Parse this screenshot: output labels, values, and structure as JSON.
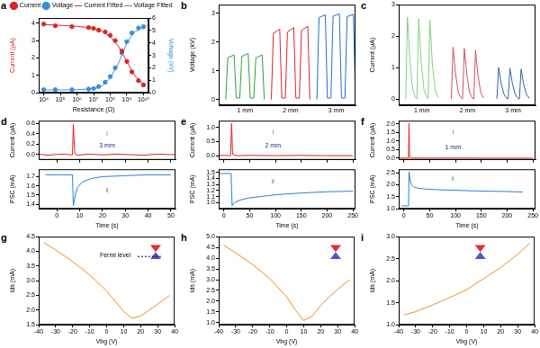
{
  "chart_data": [
    {
      "title": "a",
      "type": "line",
      "x_label": "Resistance (Ω)",
      "y_label": "Current (μA)",
      "y2_label": "Voltage (kV)",
      "log": "x",
      "grid": false,
      "legend": "top",
      "xlim": [
        5000,
        20000000000
      ],
      "xticks": [
        {
          "value": 10000,
          "label": "10⁴"
        },
        {
          "value": 100000,
          "label": "10⁵"
        },
        {
          "value": 1000000,
          "label": "10⁶"
        },
        {
          "value": 10000000,
          "label": "10⁷"
        },
        {
          "value": 100000000,
          "label": "10⁸"
        },
        {
          "value": 1000000000,
          "label": "10⁹"
        },
        {
          "value": 10000000000,
          "label": "10¹⁰"
        }
      ],
      "ylim": [
        0,
        4.3
      ],
      "yticks": [
        0,
        1,
        2,
        3,
        4
      ],
      "y2lim": [
        0,
        6
      ],
      "y2ticks": [
        0,
        1,
        2,
        3,
        4,
        5,
        6
      ],
      "series": [
        {
          "name": "Current",
          "type": "scatter",
          "color": "#d62728",
          "x": [
            10000,
            50000,
            500000,
            5000000,
            10000000,
            20000000,
            50000000,
            100000000,
            200000000,
            500000000,
            1000000000,
            2000000000,
            5000000000,
            10000000000
          ],
          "values": [
            3.95,
            3.85,
            3.8,
            3.75,
            3.7,
            3.6,
            3.5,
            3.3,
            3.0,
            2.4,
            1.8,
            1.2,
            0.7,
            0.45
          ]
        },
        {
          "name": "Voltage",
          "type": "scatter",
          "color": "#3a8fd8",
          "axis": "y2",
          "x": [
            10000,
            50000,
            500000,
            5000000,
            10000000,
            20000000,
            50000000,
            100000000,
            200000000,
            500000000,
            1000000000,
            2000000000,
            5000000000,
            10000000000
          ],
          "values": [
            0.25,
            0.25,
            0.25,
            0.3,
            0.35,
            0.5,
            0.85,
            1.3,
            2.0,
            3.2,
            4.1,
            4.8,
            5.2,
            5.3
          ]
        },
        {
          "name": "Current Fitted",
          "type": "line",
          "color": "#d62728",
          "x": [
            10000,
            100000,
            1000000,
            10000000,
            30000000,
            100000000,
            300000000,
            1000000000,
            3000000000,
            10000000000
          ],
          "values": [
            3.92,
            3.88,
            3.82,
            3.72,
            3.55,
            3.25,
            2.7,
            1.8,
            1.0,
            0.45
          ]
        },
        {
          "name": "Voltage Fitted",
          "type": "line",
          "color": "#3a8fd8",
          "axis": "y2",
          "x": [
            10000,
            100000,
            1000000,
            10000000,
            30000000,
            100000000,
            300000000,
            1000000000,
            3000000000,
            10000000000
          ],
          "values": [
            0.22,
            0.23,
            0.25,
            0.33,
            0.5,
            1.2,
            2.3,
            4.0,
            4.9,
            5.25
          ]
        }
      ]
    },
    {
      "title": "b",
      "type": "line",
      "y_label": "Voltage (kV)",
      "grid": false,
      "tick_labels": "y",
      "xlim": [
        -1,
        18.5
      ],
      "ylim": [
        -0.2,
        3.3
      ],
      "yticks": [
        0,
        1,
        2,
        3
      ],
      "series": [
        {
          "name": "1 mm",
          "color": "#2e9e3a",
          "x": [
            0,
            0.3,
            1.2,
            1.5,
            2,
            2.3,
            3.2,
            3.5,
            4,
            4.3,
            5.2,
            5.5
          ],
          "values": [
            0,
            1.45,
            1.55,
            0.05,
            0.05,
            1.5,
            1.6,
            0.05,
            0.05,
            1.45,
            1.55,
            0
          ]
        },
        {
          "name": "2 mm",
          "color": "#d62728",
          "x": [
            6.5,
            6.8,
            7.7,
            8,
            8.5,
            8.8,
            9.7,
            10,
            10.5,
            10.8,
            11.7,
            12
          ],
          "values": [
            0,
            2.3,
            2.45,
            0.05,
            0.05,
            2.35,
            2.5,
            0.05,
            0.05,
            2.4,
            2.55,
            0
          ]
        },
        {
          "name": "3 mm",
          "color": "#1f6fc0",
          "x": [
            13,
            13.3,
            14.2,
            14.5,
            15,
            15.3,
            16.2,
            16.5,
            17,
            17.3,
            18.2,
            18.5
          ],
          "values": [
            0,
            2.85,
            2.95,
            0.05,
            0.05,
            2.9,
            2.98,
            0.05,
            0.05,
            2.88,
            2.97,
            0
          ]
        }
      ]
    },
    {
      "title": "c",
      "type": "line",
      "y_label": "Current (μA)",
      "grid": false,
      "tick_labels": "y",
      "xlim": [
        -1,
        18.5
      ],
      "ylim": [
        -0.2,
        3
      ],
      "yticks": [
        0,
        1,
        2,
        3
      ],
      "series": [
        {
          "name": "1 mm",
          "color": "#7fd17f",
          "x": [
            0,
            0.25,
            0.6,
            1.0,
            1.4,
            1.6,
            1.85,
            2.2,
            2.6,
            3.0,
            3.2,
            3.45,
            3.8,
            4.2,
            4.6
          ],
          "values": [
            0,
            2.6,
            1.2,
            0.3,
            0.05,
            0,
            2.55,
            1.2,
            0.3,
            0.05,
            0,
            2.5,
            1.1,
            0.3,
            0.05
          ]
        },
        {
          "name": "2 mm",
          "color": "#d05060",
          "x": [
            6.5,
            6.75,
            7.1,
            7.5,
            7.9,
            8.1,
            8.35,
            8.7,
            9.1,
            9.5,
            9.7,
            9.95,
            10.3,
            10.7,
            11.1
          ],
          "values": [
            0,
            1.65,
            0.8,
            0.2,
            0.03,
            0,
            1.6,
            0.8,
            0.2,
            0.03,
            0,
            1.55,
            0.75,
            0.2,
            0.03
          ]
        },
        {
          "name": "3 mm",
          "color": "#3060a8",
          "x": [
            13,
            13.25,
            13.6,
            14.0,
            14.4,
            14.6,
            14.85,
            15.2,
            15.6,
            16.0,
            16.2,
            16.45,
            16.8,
            17.2,
            17.6
          ],
          "values": [
            0,
            1.0,
            0.5,
            0.15,
            0.02,
            0,
            0.98,
            0.5,
            0.15,
            0.02,
            0,
            0.95,
            0.48,
            0.15,
            0.02
          ]
        }
      ]
    },
    {
      "title": "d",
      "type": "line",
      "y_label": "Current (μA)",
      "grid": false,
      "tick_labels": "y",
      "xlim": [
        -8,
        52
      ],
      "xticks": [
        0,
        10,
        20,
        30,
        40,
        50
      ],
      "ylim": [
        -0.1,
        0.65
      ],
      "yticks": [
        {
          "value": 0,
          "label": "0.0"
        },
        0.2,
        0.4,
        0.6
      ],
      "color": "#e02020",
      "x": [
        -8,
        -4,
        0,
        4,
        6,
        6.8,
        7.2,
        7.8,
        9,
        14,
        20,
        26,
        32,
        38,
        44,
        50,
        52
      ],
      "values": [
        0.01,
        -0.01,
        0.005,
        0.01,
        -0.005,
        0,
        0.58,
        0.02,
        -0.01,
        0.01,
        -0.005,
        0.01,
        0,
        -0.01,
        0.01,
        0,
        0.005
      ],
      "annotations": [
        {
          "text": "i",
          "x": 22,
          "y": 0.4,
          "color": "#2e9e3a"
        },
        {
          "text": "3 mm",
          "x": 22,
          "y": 0.17,
          "color": "#1a237e"
        }
      ]
    },
    {
      "type": "line",
      "x_label": "Time (s)",
      "y_label": "PSC (mA)",
      "grid": false,
      "xlim": [
        -8,
        52
      ],
      "xticks": [
        0,
        10,
        20,
        30,
        40,
        50
      ],
      "ylim": [
        1.35,
        1.78
      ],
      "yticks": [
        1.4,
        1.5,
        1.6,
        1.7
      ],
      "color": "#2a7fd4",
      "x": [
        -5,
        0,
        5,
        6.8,
        7.2,
        8,
        9,
        11,
        15,
        20,
        30,
        40,
        50
      ],
      "values": [
        1.72,
        1.72,
        1.72,
        1.72,
        1.38,
        1.5,
        1.58,
        1.64,
        1.68,
        1.7,
        1.71,
        1.72,
        1.72
      ],
      "annotations": [
        {
          "text": "ii",
          "x": 22,
          "y": 1.55,
          "color": "#2e9e3a"
        }
      ]
    },
    {
      "title": "e",
      "type": "line",
      "y_label": "Current (μA)",
      "grid": false,
      "tick_labels": "y",
      "xlim": [
        -10,
        255
      ],
      "xticks": [
        0,
        50,
        100,
        150,
        200,
        250
      ],
      "ylim": [
        -0.15,
        1.25
      ],
      "yticks": [
        {
          "value": 0,
          "label": "0.0"
        },
        0.5,
        {
          "value": 1,
          "label": "1.0"
        }
      ],
      "color": "#e02020",
      "x": [
        -10,
        0,
        10,
        13,
        15,
        17,
        25,
        50,
        100,
        150,
        200,
        250
      ],
      "values": [
        0,
        0.01,
        0,
        0,
        1.15,
        0.05,
        0,
        0.01,
        0,
        0.01,
        0,
        0
      ],
      "annotations": [
        {
          "text": "i",
          "x": 95,
          "y": 0.85,
          "color": "#2e9e3a"
        },
        {
          "text": "2 mm",
          "x": 95,
          "y": 0.35,
          "color": "#1a237e"
        }
      ]
    },
    {
      "type": "line",
      "x_label": "Time (s)",
      "y_label": "PSC (mA)",
      "grid": false,
      "xlim": [
        -10,
        255
      ],
      "xticks": [
        0,
        50,
        100,
        150,
        200,
        250
      ],
      "ylim": [
        0.9,
        1.55
      ],
      "yticks": [
        {
          "value": 1,
          "label": "1.0"
        },
        1.1,
        1.2,
        1.3,
        1.4,
        1.5
      ],
      "color": "#2a7fd4",
      "x": [
        -10,
        0,
        10,
        14,
        16,
        20,
        30,
        50,
        100,
        150,
        200,
        250
      ],
      "values": [
        1.48,
        1.48,
        1.48,
        1.48,
        0.95,
        1.0,
        1.04,
        1.08,
        1.13,
        1.16,
        1.18,
        1.19
      ],
      "annotations": [
        {
          "text": "ii",
          "x": 95,
          "y": 1.35,
          "color": "#2e9e3a"
        }
      ]
    },
    {
      "title": "f",
      "type": "line",
      "y_label": "Current (μA)",
      "grid": false,
      "tick_labels": "y",
      "xlim": [
        -10,
        255
      ],
      "xticks": [
        0,
        50,
        100,
        150,
        200,
        250
      ],
      "ylim": [
        -0.1,
        2.2
      ],
      "yticks": [
        {
          "value": 0,
          "label": "0.0"
        },
        0.5,
        {
          "value": 1,
          "label": "1.0"
        },
        1.5,
        {
          "value": 2,
          "label": "2.0"
        }
      ],
      "color": "#e02020",
      "x": [
        -10,
        0,
        7,
        9,
        10,
        11,
        14,
        25,
        50,
        100,
        150,
        200,
        250
      ],
      "values": [
        0,
        0.01,
        0,
        0,
        2.05,
        0.05,
        0,
        0.01,
        0,
        0.01,
        0,
        0,
        0
      ],
      "annotations": [
        {
          "text": "i",
          "x": 95,
          "y": 1.5,
          "color": "#2e9e3a"
        },
        {
          "text": "1 mm",
          "x": 95,
          "y": 0.6,
          "color": "#1a237e"
        }
      ]
    },
    {
      "type": "line",
      "x_label": "Time (s)",
      "y_label": "PSC (mA)",
      "grid": false,
      "xlim": [
        -10,
        255
      ],
      "xticks": [
        0,
        50,
        100,
        150,
        200,
        250
      ],
      "ylim": [
        1.0,
        2.65
      ],
      "yticks": [
        {
          "value": 1,
          "label": "1.0"
        },
        1.5,
        {
          "value": 2,
          "label": "2.0"
        },
        2.5
      ],
      "color": "#2a7fd4",
      "x": [
        -5,
        0,
        5,
        9,
        10,
        12,
        15,
        20,
        30,
        40,
        60,
        100,
        150,
        200,
        230
      ],
      "values": [
        1.12,
        1.12,
        1.12,
        1.12,
        2.55,
        2.2,
        2.0,
        1.9,
        1.85,
        1.83,
        1.8,
        1.77,
        1.74,
        1.72,
        1.7
      ],
      "annotations": [
        {
          "text": "ii",
          "x": 95,
          "y": 2.25,
          "color": "#2e9e3a"
        }
      ]
    },
    {
      "title": "g",
      "type": "line",
      "x_label": "Vbg (V)",
      "y_label": "Ids (mA)",
      "grid": false,
      "xlim": [
        -40,
        40
      ],
      "xticks": [
        -40,
        -30,
        -20,
        -10,
        0,
        10,
        20,
        30,
        40
      ],
      "ylim": [
        1.5,
        4.5
      ],
      "yticks": [
        1.5,
        {
          "value": 2,
          "label": "2.0"
        },
        2.5,
        {
          "value": 3,
          "label": "3.0"
        },
        3.5,
        {
          "value": 4,
          "label": "4.0"
        },
        4.5
      ],
      "color": "#f08a1e",
      "x": [
        -37,
        -30,
        -20,
        -10,
        0,
        5,
        10,
        15,
        20,
        25,
        30,
        37
      ],
      "values": [
        4.3,
        4.05,
        3.65,
        3.2,
        2.65,
        2.3,
        1.95,
        1.72,
        1.8,
        2.0,
        2.2,
        2.5
      ],
      "annotations": [
        {
          "text": "Fermi level",
          "x": 5,
          "y": 3.85,
          "color": "#000000"
        }
      ]
    },
    {
      "title": "h",
      "type": "line",
      "x_label": "Vbg (V)",
      "y_label": "Ids (mA)",
      "grid": false,
      "xlim": [
        -40,
        40
      ],
      "xticks": [
        -40,
        -30,
        -20,
        -10,
        0,
        10,
        20,
        30,
        40
      ],
      "ylim": [
        0.9,
        5.0
      ],
      "yticks": [
        {
          "value": 1,
          "label": "1.0"
        },
        1.5,
        {
          "value": 2,
          "label": "2.0"
        },
        2.5,
        {
          "value": 3,
          "label": "3.0"
        },
        3.5,
        {
          "value": 4,
          "label": "4.0"
        },
        4.5,
        {
          "value": 5,
          "label": "5.0"
        }
      ],
      "color": "#f08a1e",
      "x": [
        -37,
        -30,
        -20,
        -10,
        0,
        5,
        10,
        15,
        20,
        25,
        30,
        37
      ],
      "values": [
        4.6,
        4.25,
        3.7,
        3.05,
        2.2,
        1.6,
        1.1,
        1.3,
        1.8,
        2.2,
        2.55,
        3.0
      ]
    },
    {
      "title": "i",
      "type": "line",
      "x_label": "Vbg (V)",
      "y_label": "Ids (mA)",
      "grid": false,
      "xlim": [
        -40,
        40
      ],
      "xticks": [
        -40,
        -30,
        -20,
        -10,
        0,
        10,
        20,
        30,
        40
      ],
      "ylim": [
        1.0,
        3.0
      ],
      "yticks": [
        {
          "value": 1,
          "label": "1.0"
        },
        1.5,
        {
          "value": 2,
          "label": "2.0"
        },
        2.5,
        {
          "value": 3,
          "label": "3.0"
        }
      ],
      "color": "#f08a1e",
      "x": [
        -37,
        -30,
        -20,
        -10,
        0,
        10,
        20,
        30,
        37
      ],
      "values": [
        1.22,
        1.3,
        1.45,
        1.62,
        1.8,
        2.05,
        2.3,
        2.6,
        2.85
      ]
    }
  ]
}
